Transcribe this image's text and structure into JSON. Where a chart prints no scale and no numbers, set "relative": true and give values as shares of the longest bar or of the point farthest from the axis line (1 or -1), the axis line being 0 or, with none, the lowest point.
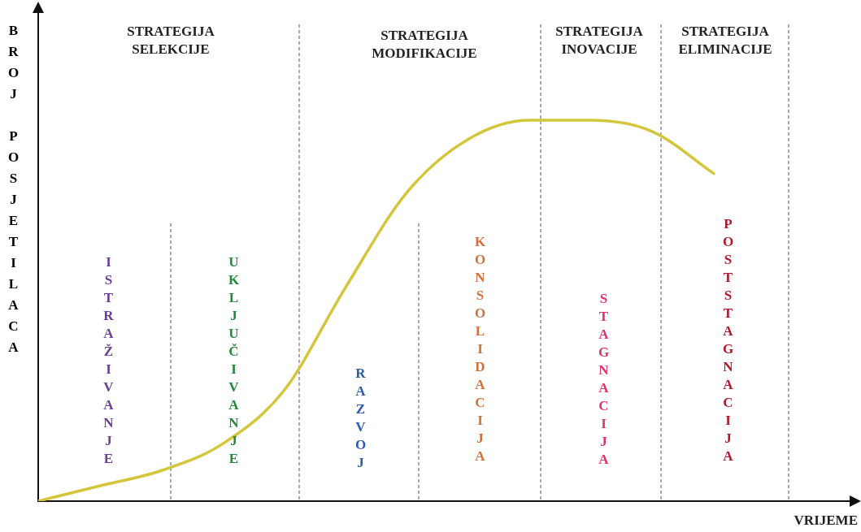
{
  "chart_data": {
    "type": "line",
    "relative": true,
    "ylabel": "BROJ POSJETILACA",
    "xlabel": "VRIJEME",
    "categories": [
      null,
      null,
      null,
      null,
      null,
      null,
      null,
      null,
      null,
      null,
      null,
      null
    ],
    "series": [
      {
        "color": "#d4c63a",
        "values": [
          0,
          0.04,
          0.08,
          0.15,
          0.29,
          0.56,
          0.81,
          0.95,
          1.0,
          1.0,
          0.97,
          0.86
        ]
      }
    ],
    "annotations": [
      "STRATEGIJA SELEKCIJE",
      "STRATEGIJA MODIFIKACIJE",
      "STRATEGIJA INOVACIJE",
      "STRATEGIJA ELIMINACIJE",
      "ISTRAŽIVANJE",
      "UKLJUČIVANJE",
      "RAZVOJ",
      "KONSOLIDACIJA",
      "STAGNACIJA",
      "POSTSTAGNACIJA"
    ],
    "grid": false,
    "legend": false,
    "marker": "none",
    "line_style": "solid"
  }
}
